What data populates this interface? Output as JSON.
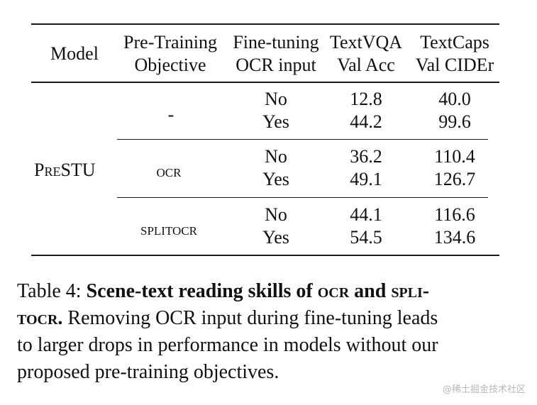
{
  "table": {
    "headers": {
      "model": "Model",
      "pretrain_line1": "Pre-Training",
      "pretrain_line2": "Objective",
      "finetune_line1": "Fine-tuning",
      "finetune_line2": "OCR input",
      "textvqa_line1": "TextVQA",
      "textvqa_line2": "Val Acc",
      "textcaps_line1": "TextCaps",
      "textcaps_line2": "Val CIDEr"
    },
    "model_name": "PreSTU",
    "groups": [
      {
        "objective": "-",
        "rows": [
          {
            "ocr_input": "No",
            "textvqa": "12.8",
            "textcaps": "40.0"
          },
          {
            "ocr_input": "Yes",
            "textvqa": "44.2",
            "textcaps": "99.6"
          }
        ]
      },
      {
        "objective": "ocr",
        "rows": [
          {
            "ocr_input": "No",
            "textvqa": "36.2",
            "textcaps": "110.4"
          },
          {
            "ocr_input": "Yes",
            "textvqa": "49.1",
            "textcaps": "126.7"
          }
        ]
      },
      {
        "objective": "splitocr",
        "rows": [
          {
            "ocr_input": "No",
            "textvqa": "44.1",
            "textcaps": "116.6"
          },
          {
            "ocr_input": "Yes",
            "textvqa": "54.5",
            "textcaps": "134.6"
          }
        ]
      }
    ]
  },
  "caption": {
    "label": "Table 4:",
    "bold_part1": "Scene-text reading skills of",
    "bold_sc1": "ocr",
    "bold_and": "and",
    "bold_sc2a": "spli-",
    "bold_sc2b": "tocr",
    "bold_period": ".",
    "rest_line2": "Removing OCR input during fine-tuning leads",
    "rest_line3": "to larger drops in performance in models without our",
    "rest_line4": "proposed pre-training objectives."
  },
  "watermark": "@稀土掘金技术社区"
}
